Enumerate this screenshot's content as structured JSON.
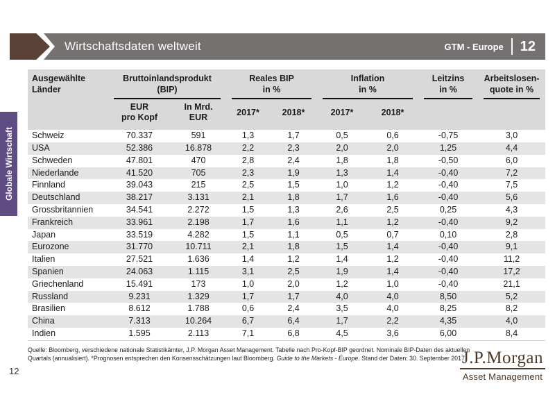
{
  "banner": {
    "title": "Wirtschaftsdaten weltweit",
    "series_label": "GTM - Europe",
    "page_number": "12"
  },
  "sidebar": {
    "tab_label": "Globale Wirtschaft"
  },
  "table": {
    "headers": {
      "country": "Ausgewählte\nLänder",
      "gdp_group": "Bruttoinlandsprodukt\n(BIP)",
      "real_gdp_group": "Reales BIP\nin %",
      "inflation_group": "Inflation\nin %",
      "policy_rate_group": "Leitzins\nin %",
      "unemployment_group": "Arbeitslosen-\nquote in %",
      "gdp_per_capita": "EUR\npro Kopf",
      "gdp_total": "In Mrd.\nEUR",
      "real_gdp_2017": "2017*",
      "real_gdp_2018": "2018*",
      "inflation_2017": "2017*",
      "inflation_2018": "2018*"
    },
    "row_keys": [
      "country",
      "gdp_per_capita",
      "gdp_total",
      "real_gdp_2017",
      "real_gdp_2018",
      "inflation_2017",
      "inflation_2018",
      "policy_rate",
      "unemployment"
    ],
    "rows": [
      {
        "country": "Schweiz",
        "gdp_per_capita": "70.337",
        "gdp_total": "591",
        "real_gdp_2017": "1,3",
        "real_gdp_2018": "1,7",
        "inflation_2017": "0,5",
        "inflation_2018": "0,6",
        "policy_rate": "-0,75",
        "unemployment": "3,0"
      },
      {
        "country": "USA",
        "gdp_per_capita": "52.386",
        "gdp_total": "16.878",
        "real_gdp_2017": "2,2",
        "real_gdp_2018": "2,3",
        "inflation_2017": "2,0",
        "inflation_2018": "2,0",
        "policy_rate": "1,25",
        "unemployment": "4,4"
      },
      {
        "country": "Schweden",
        "gdp_per_capita": "47.801",
        "gdp_total": "470",
        "real_gdp_2017": "2,8",
        "real_gdp_2018": "2,4",
        "inflation_2017": "1,8",
        "inflation_2018": "1,8",
        "policy_rate": "-0,50",
        "unemployment": "6,0"
      },
      {
        "country": "Niederlande",
        "gdp_per_capita": "41.520",
        "gdp_total": "705",
        "real_gdp_2017": "2,3",
        "real_gdp_2018": "1,9",
        "inflation_2017": "1,3",
        "inflation_2018": "1,4",
        "policy_rate": "-0,40",
        "unemployment": "7,2"
      },
      {
        "country": "Finnland",
        "gdp_per_capita": "39.043",
        "gdp_total": "215",
        "real_gdp_2017": "2,5",
        "real_gdp_2018": "1,5",
        "inflation_2017": "1,0",
        "inflation_2018": "1,2",
        "policy_rate": "-0,40",
        "unemployment": "7,5"
      },
      {
        "country": "Deutschland",
        "gdp_per_capita": "38.217",
        "gdp_total": "3.131",
        "real_gdp_2017": "2,1",
        "real_gdp_2018": "1,8",
        "inflation_2017": "1,7",
        "inflation_2018": "1,6",
        "policy_rate": "-0,40",
        "unemployment": "5,6"
      },
      {
        "country": "Grossbritannien",
        "gdp_per_capita": "34.541",
        "gdp_total": "2.272",
        "real_gdp_2017": "1,5",
        "real_gdp_2018": "1,3",
        "inflation_2017": "2,6",
        "inflation_2018": "2,5",
        "policy_rate": "0,25",
        "unemployment": "4,3"
      },
      {
        "country": "Frankreich",
        "gdp_per_capita": "33.961",
        "gdp_total": "2.198",
        "real_gdp_2017": "1,7",
        "real_gdp_2018": "1,6",
        "inflation_2017": "1,1",
        "inflation_2018": "1,2",
        "policy_rate": "-0,40",
        "unemployment": "9,2"
      },
      {
        "country": "Japan",
        "gdp_per_capita": "33.519",
        "gdp_total": "4.282",
        "real_gdp_2017": "1,5",
        "real_gdp_2018": "1,1",
        "inflation_2017": "0,5",
        "inflation_2018": "0,7",
        "policy_rate": "0,10",
        "unemployment": "2,8"
      },
      {
        "country": "Eurozone",
        "gdp_per_capita": "31.770",
        "gdp_total": "10.711",
        "real_gdp_2017": "2,1",
        "real_gdp_2018": "1,8",
        "inflation_2017": "1,5",
        "inflation_2018": "1,4",
        "policy_rate": "-0,40",
        "unemployment": "9,1"
      },
      {
        "country": "Italien",
        "gdp_per_capita": "27.521",
        "gdp_total": "1.636",
        "real_gdp_2017": "1,4",
        "real_gdp_2018": "1,2",
        "inflation_2017": "1,4",
        "inflation_2018": "1,2",
        "policy_rate": "-0,40",
        "unemployment": "11,2"
      },
      {
        "country": "Spanien",
        "gdp_per_capita": "24.063",
        "gdp_total": "1.115",
        "real_gdp_2017": "3,1",
        "real_gdp_2018": "2,5",
        "inflation_2017": "1,9",
        "inflation_2018": "1,4",
        "policy_rate": "-0,40",
        "unemployment": "17,2"
      },
      {
        "country": "Griechenland",
        "gdp_per_capita": "15.491",
        "gdp_total": "173",
        "real_gdp_2017": "1,0",
        "real_gdp_2018": "2,0",
        "inflation_2017": "1,2",
        "inflation_2018": "1,0",
        "policy_rate": "-0,40",
        "unemployment": "21,1"
      },
      {
        "country": "Russland",
        "gdp_per_capita": "9.231",
        "gdp_total": "1.329",
        "real_gdp_2017": "1,7",
        "real_gdp_2018": "1,7",
        "inflation_2017": "4,0",
        "inflation_2018": "4,0",
        "policy_rate": "8,50",
        "unemployment": "5,2"
      },
      {
        "country": "Brasilien",
        "gdp_per_capita": "8.612",
        "gdp_total": "1.788",
        "real_gdp_2017": "0,6",
        "real_gdp_2018": "2,4",
        "inflation_2017": "3,5",
        "inflation_2018": "4,0",
        "policy_rate": "8,25",
        "unemployment": "8,2"
      },
      {
        "country": "China",
        "gdp_per_capita": "7.313",
        "gdp_total": "10.264",
        "real_gdp_2017": "6,7",
        "real_gdp_2018": "6,4",
        "inflation_2017": "1,7",
        "inflation_2018": "2,2",
        "policy_rate": "4,35",
        "unemployment": "4,0"
      },
      {
        "country": "Indien",
        "gdp_per_capita": "1.595",
        "gdp_total": "2.113",
        "real_gdp_2017": "7,1",
        "real_gdp_2018": "6,8",
        "inflation_2017": "4,5",
        "inflation_2018": "3,6",
        "policy_rate": "6,00",
        "unemployment": "8,4"
      }
    ]
  },
  "footer": {
    "line1": "Quelle: Bloomberg, verschiedene nationale Statistikämter, J.P. Morgan Asset Management. Tabelle nach Pro-Kopf-BIP geordnet. Nominale BIP-Daten des aktuellen",
    "line2_pre": "Quartals (annualisiert). *Prognosen entsprechen den Konsensschätzungen laut Bloomberg. ",
    "line2_italic": "Guide to the Markets - Europe",
    "line2_post": ". Stand der Daten: 30. September 2017.",
    "page_number": "12"
  },
  "logo": {
    "name": "J.P.Morgan",
    "subtitle": "Asset Management"
  },
  "colors": {
    "banner_gray": "#757170",
    "arrow_brown": "#5b4236",
    "tab_purple": "#5d4b82",
    "header_gray": "#d9d9d9",
    "stripe_gray": "#e4e4e4",
    "logo_brown": "#4a3728"
  }
}
